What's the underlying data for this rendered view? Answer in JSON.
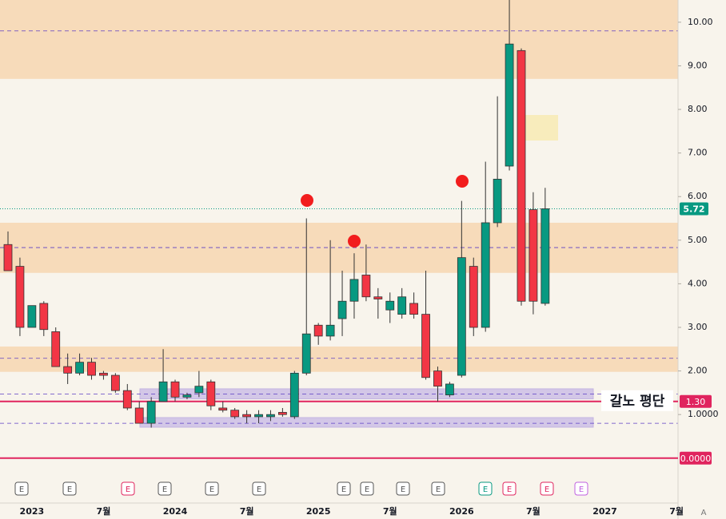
{
  "chart_data": {
    "type": "candlestick",
    "categories": [
      null,
      null,
      "2023",
      null,
      null,
      null,
      null,
      null,
      "7월",
      null,
      null,
      null,
      null,
      null,
      "2024",
      null,
      null,
      null,
      null,
      null,
      "7월",
      null,
      null,
      null,
      null,
      null,
      "2025",
      null,
      null,
      null,
      null,
      null,
      "7월",
      null,
      null,
      null,
      null,
      null,
      "2026",
      null,
      null,
      null,
      null,
      null,
      "7월",
      null,
      null,
      null,
      null,
      null,
      "2027",
      null,
      null,
      null,
      null,
      null,
      "7월"
    ],
    "open": [
      4.9,
      4.4,
      3.0,
      3.55,
      2.9,
      2.1,
      1.95,
      2.2,
      1.95,
      1.9,
      1.55,
      1.15,
      0.8,
      1.3,
      1.75,
      1.4,
      1.5,
      1.75,
      1.15,
      1.1,
      1.0,
      0.95,
      0.95,
      1.05,
      0.95,
      1.95,
      3.05,
      2.8,
      3.2,
      3.6,
      4.2,
      3.7,
      3.4,
      3.3,
      3.55,
      3.3,
      2.0,
      1.45,
      1.9,
      4.4,
      3.0,
      5.4,
      6.7,
      9.35,
      5.7,
      3.55,
      null,
      null,
      null,
      null,
      null,
      null,
      null,
      null,
      null,
      null,
      null
    ],
    "high": [
      5.2,
      4.6,
      3.5,
      3.6,
      3.0,
      2.4,
      2.4,
      2.3,
      2.0,
      1.95,
      1.7,
      1.3,
      1.4,
      2.5,
      1.8,
      1.5,
      2.0,
      1.8,
      1.3,
      1.15,
      1.1,
      1.1,
      1.1,
      1.15,
      2.0,
      5.5,
      3.1,
      5.0,
      4.3,
      4.7,
      4.9,
      3.9,
      3.8,
      3.9,
      3.8,
      4.3,
      2.1,
      1.75,
      5.9,
      4.6,
      6.8,
      8.3,
      10.7,
      9.4,
      6.1,
      6.2,
      null,
      null,
      null,
      null,
      null,
      null,
      null,
      null,
      null,
      null,
      null
    ],
    "low": [
      4.3,
      2.8,
      3.0,
      2.8,
      2.1,
      1.7,
      1.9,
      1.8,
      1.8,
      1.5,
      1.1,
      0.8,
      0.7,
      1.3,
      1.3,
      1.35,
      1.4,
      1.1,
      1.05,
      0.9,
      0.8,
      0.8,
      0.85,
      0.95,
      0.9,
      1.9,
      2.6,
      2.7,
      2.8,
      3.2,
      3.6,
      3.2,
      3.1,
      3.2,
      3.2,
      1.8,
      1.3,
      1.4,
      1.85,
      2.8,
      2.9,
      5.3,
      6.6,
      3.5,
      3.3,
      3.5,
      null,
      null,
      null,
      null,
      null,
      null,
      null,
      null,
      null,
      null,
      null
    ],
    "close": [
      4.3,
      3.0,
      3.5,
      2.95,
      2.1,
      1.95,
      2.2,
      1.9,
      1.9,
      1.55,
      1.15,
      0.8,
      1.3,
      1.75,
      1.4,
      1.45,
      1.65,
      1.2,
      1.1,
      0.95,
      0.95,
      1.0,
      1.0,
      1.0,
      1.95,
      2.85,
      2.8,
      3.05,
      3.6,
      4.1,
      3.7,
      3.65,
      3.6,
      3.7,
      3.3,
      1.85,
      1.65,
      1.7,
      4.6,
      3.0,
      5.4,
      6.4,
      9.5,
      3.6,
      3.6,
      5.72,
      null,
      null,
      null,
      null,
      null,
      null,
      null,
      null,
      null,
      null,
      null
    ],
    "up_color": "#089981",
    "down_color": "#f23645",
    "ylim": [
      -1.03,
      10.51
    ],
    "yticks": [
      {
        "value": 1,
        "label": "1.0000"
      },
      {
        "value": 2,
        "label": "2.00"
      },
      {
        "value": 3,
        "label": "3.00"
      },
      {
        "value": 4,
        "label": "4.00"
      },
      {
        "value": 5,
        "label": "5.00"
      },
      {
        "value": 6,
        "label": "6.00"
      },
      {
        "value": 7,
        "label": "7.00"
      },
      {
        "value": 8,
        "label": "8.00"
      },
      {
        "value": 9,
        "label": "9.00"
      },
      {
        "value": 10,
        "label": "10.00"
      }
    ],
    "zones": [
      [
        8.7,
        10.51
      ],
      [
        4.25,
        5.4
      ],
      [
        1.98,
        2.56
      ]
    ],
    "zone_color": "#f7d6b2",
    "bands": [
      [
        1.36,
        1.59
      ],
      [
        0.71,
        0.93
      ]
    ],
    "band_color": "#cbbde6",
    "dashed_levels": [
      9.8,
      4.83,
      2.29,
      1.47,
      0.8
    ],
    "hlines": [
      {
        "value": 1.3,
        "label": "1.30"
      },
      {
        "value": 0,
        "label": "0.0000"
      }
    ],
    "hline_color": "#e0245e",
    "last_price": {
      "value": 5.72,
      "label": "5.72"
    },
    "annotation": "갈노 평단",
    "events": [
      "E",
      "E",
      "E",
      "E",
      "E",
      "E",
      "E",
      "E",
      "E",
      "E",
      "E",
      "E",
      "E",
      "E"
    ],
    "corner_label": "A"
  }
}
